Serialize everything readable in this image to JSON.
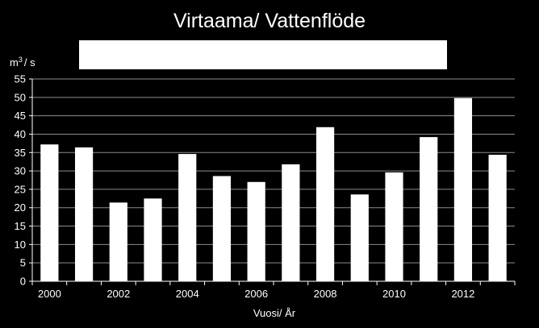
{
  "chart_data": {
    "type": "bar",
    "title": "Virtaama/ Vattenflöde",
    "ylabel_unit": "m",
    "ylabel_sup": "3",
    "ylabel_tail": "/ s",
    "xlabel": "Vuosi/ År",
    "ylim": [
      0,
      55
    ],
    "y_ticks": [
      0,
      5,
      10,
      15,
      20,
      25,
      30,
      35,
      40,
      45,
      50,
      55
    ],
    "categories": [
      2000,
      2001,
      2002,
      2003,
      2004,
      2005,
      2006,
      2007,
      2008,
      2009,
      2010,
      2011,
      2012,
      2013
    ],
    "x_tick_labels": [
      "2000",
      "2002",
      "2004",
      "2006",
      "2008",
      "2010",
      "2012"
    ],
    "values": [
      37.2,
      36.4,
      21.4,
      22.5,
      34.6,
      28.6,
      27.0,
      31.8,
      41.9,
      23.6,
      29.6,
      39.2,
      49.8,
      34.4
    ],
    "grid": true,
    "colors": {
      "background": "#000000",
      "bar": "#ffffff",
      "grid": "#8c8c8c",
      "axis": "#ffffff",
      "text": "#ffffff"
    }
  }
}
